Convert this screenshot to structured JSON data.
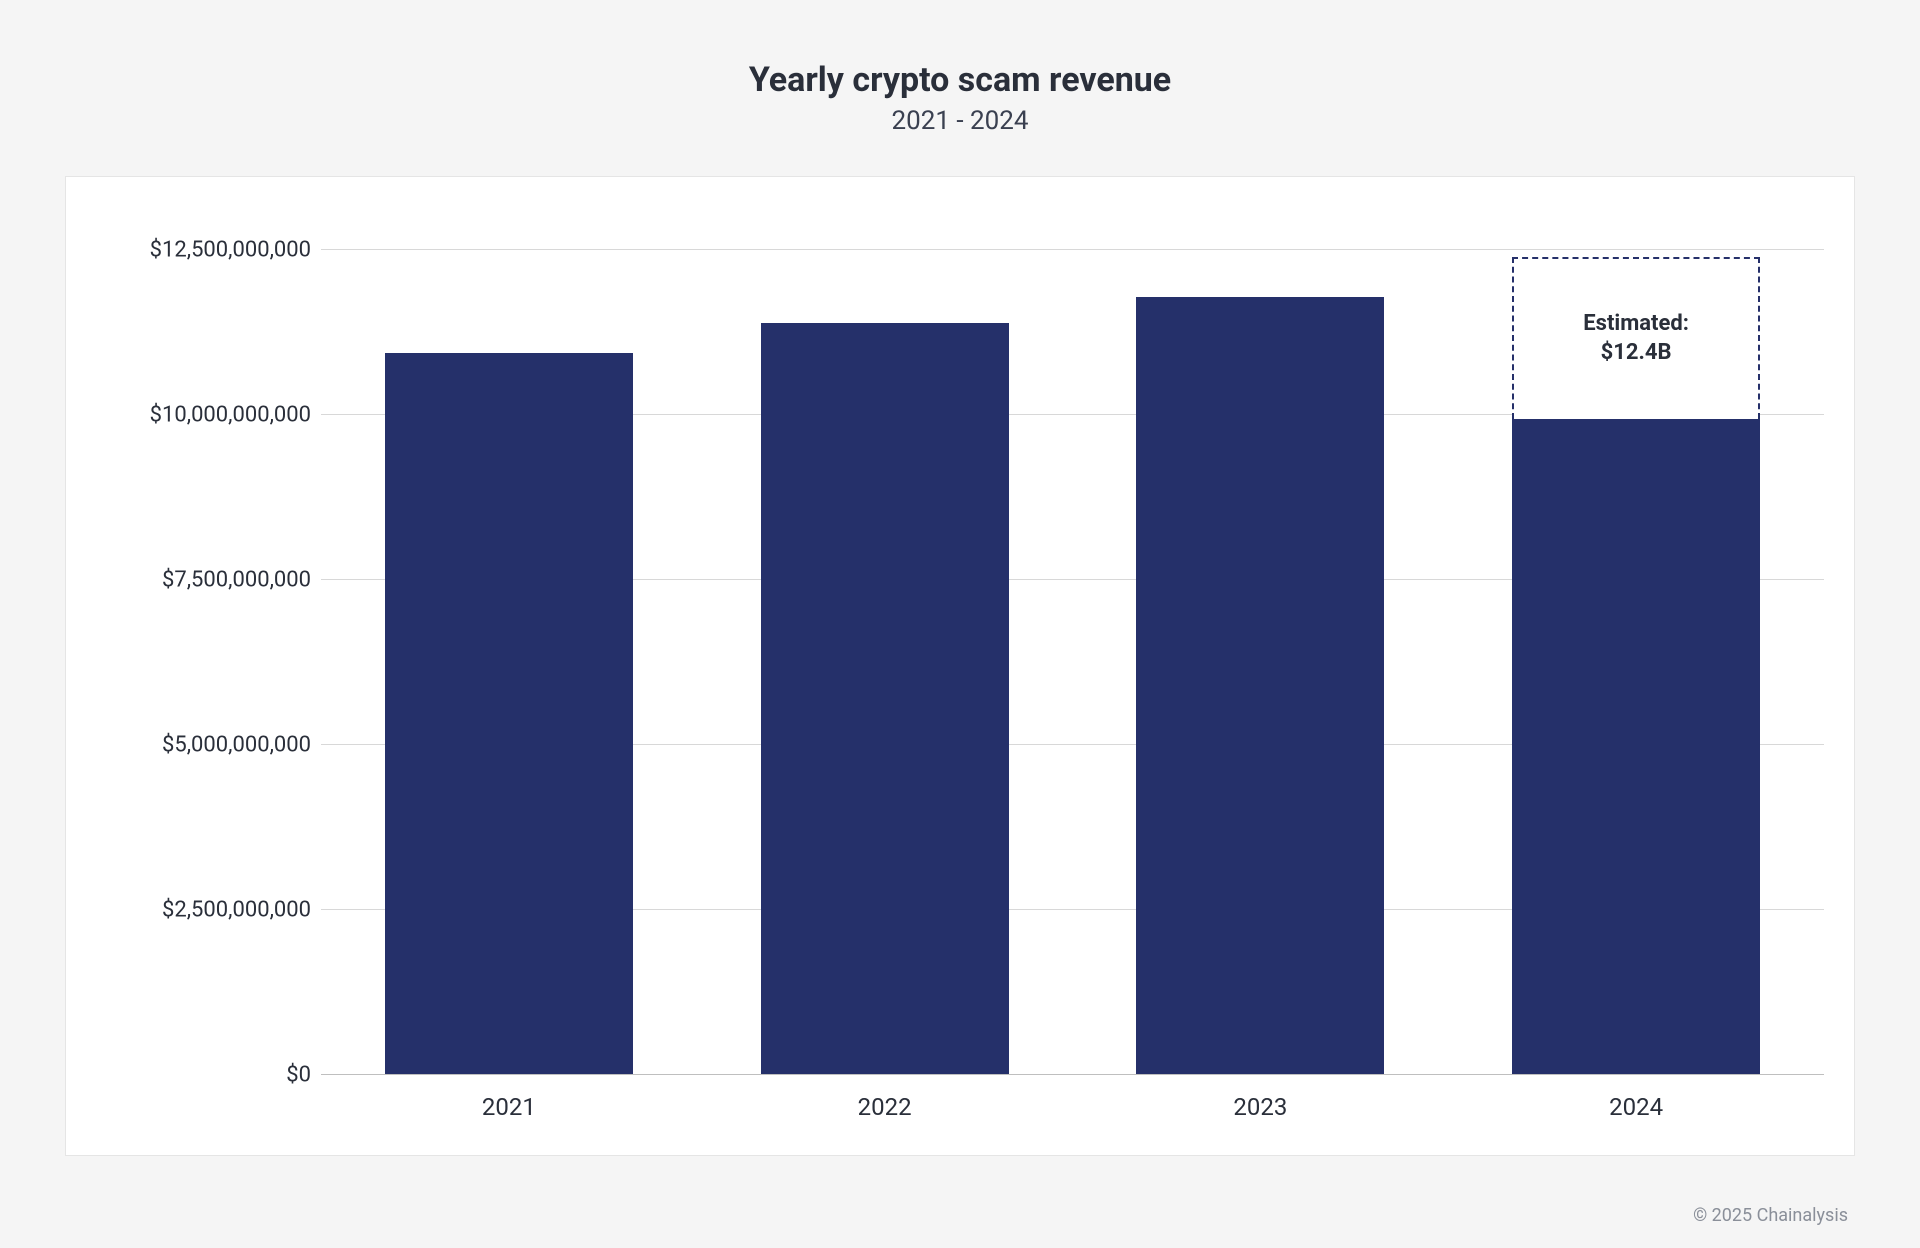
{
  "header": {
    "title": "Yearly crypto scam revenue",
    "subtitle": "2021 - 2024"
  },
  "chart": {
    "type": "bar",
    "categories": [
      "2021",
      "2022",
      "2023",
      "2024"
    ],
    "values": [
      10950000000,
      11400000000,
      11800000000,
      9950000000
    ],
    "estimated": {
      "index": 3,
      "value": 12400000000,
      "label_line1": "Estimated:",
      "label_line2": "$12.4B"
    },
    "bar_color": "#25306a",
    "estimated_border_color": "#25306a",
    "estimated_bg_color": "#ffffff",
    "background_color": "#ffffff",
    "page_background": "#f5f5f5",
    "grid_color": "#d8d8d8",
    "baseline_color": "#bfbfbf",
    "text_color": "#2a2f3a",
    "yaxis": {
      "min": 0,
      "max": 12500000000,
      "tick_step": 2500000000,
      "ticks": [
        {
          "value": 0,
          "label": "$0"
        },
        {
          "value": 2500000000,
          "label": "$2,500,000,000"
        },
        {
          "value": 5000000000,
          "label": "$5,000,000,000"
        },
        {
          "value": 7500000000,
          "label": "$7,500,000,000"
        },
        {
          "value": 10000000000,
          "label": "$10,000,000,000"
        },
        {
          "value": 12500000000,
          "label": "$12,500,000,000"
        }
      ]
    },
    "plot_top_padding_pct": 5,
    "bar_width_pct": 66,
    "title_fontsize": 34,
    "subtitle_fontsize": 26,
    "tick_fontsize_y": 22,
    "tick_fontsize_x": 24,
    "estimated_fontsize": 22
  },
  "footer": {
    "copyright": "© 2025 Chainalysis",
    "color": "#8a8f99",
    "fontsize": 18
  }
}
